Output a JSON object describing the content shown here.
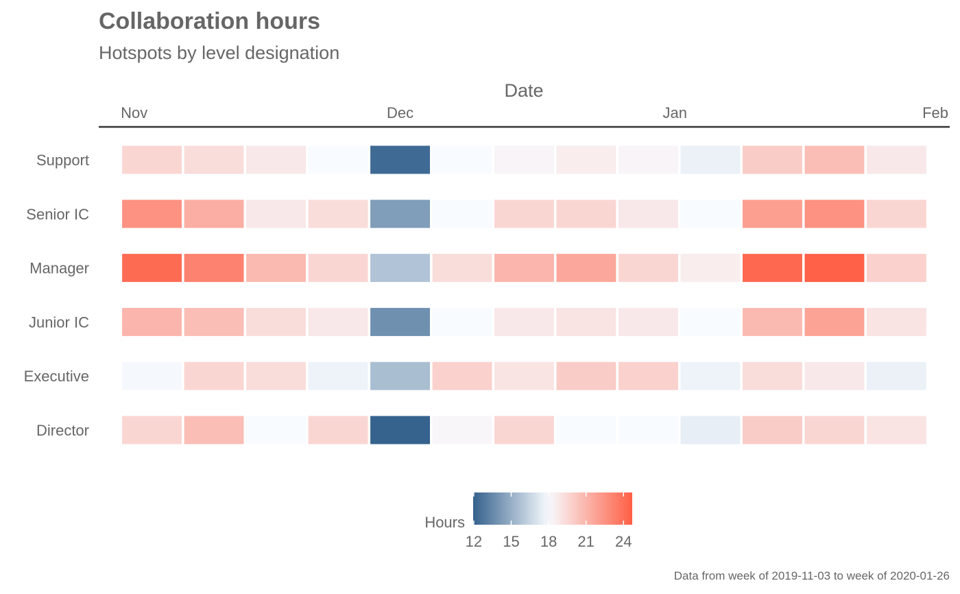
{
  "chart_data": {
    "type": "heatmap",
    "title": "Collaboration hours",
    "subtitle": "Hotspots by level designation",
    "xlabel": "Date",
    "ylabel": "",
    "caption": "Data from week of 2019-11-03 to week of 2020-01-26",
    "x_ticks": [
      {
        "label": "Nov",
        "date": "2019-11-01"
      },
      {
        "label": "Dec",
        "date": "2019-12-01"
      },
      {
        "label": "Jan",
        "date": "2020-01-01"
      },
      {
        "label": "Feb",
        "date": "2020-02-01"
      }
    ],
    "xlim": [
      "2019-10-28",
      "2020-02-01"
    ],
    "weeks": [
      "2019-11-03",
      "2019-11-10",
      "2019-11-17",
      "2019-11-24",
      "2019-12-01",
      "2019-12-08",
      "2019-12-15",
      "2019-12-22",
      "2019-12-29",
      "2020-01-05",
      "2020-01-12",
      "2020-01-19",
      "2020-01-26"
    ],
    "rows": [
      "Support",
      "Senior IC",
      "Manager",
      "Junior IC",
      "Executive",
      "Director"
    ],
    "values": [
      [
        19.6,
        19.3,
        18.8,
        18.0,
        12.3,
        18.0,
        18.3,
        18.6,
        18.3,
        17.6,
        20.0,
        20.6,
        18.8
      ],
      [
        22.5,
        21.3,
        18.8,
        19.3,
        14.3,
        18.0,
        19.6,
        19.6,
        18.8,
        18.0,
        22.0,
        22.5,
        19.6
      ],
      [
        24.2,
        23.2,
        20.8,
        19.6,
        15.8,
        19.3,
        21.0,
        21.6,
        19.6,
        18.6,
        24.3,
        24.6,
        19.8
      ],
      [
        21.0,
        20.6,
        19.3,
        18.8,
        13.8,
        18.0,
        18.8,
        19.0,
        18.8,
        18.0,
        20.8,
        21.8,
        19.0
      ],
      [
        17.9,
        19.6,
        19.3,
        17.7,
        15.6,
        19.8,
        19.0,
        20.0,
        19.8,
        17.7,
        19.3,
        18.8,
        17.6
      ],
      [
        19.6,
        20.6,
        18.0,
        19.6,
        12.0,
        18.2,
        19.6,
        18.0,
        18.0,
        17.5,
        20.0,
        19.6,
        19.0
      ]
    ],
    "color_scale": {
      "title": "Hours",
      "low": "#34618D",
      "mid": "#F8FBFF",
      "high": "#FF5F45",
      "domain": [
        11.95,
        24.7
      ],
      "breaks": [
        12,
        15,
        18,
        21,
        24
      ]
    },
    "grid": false,
    "legend_position": "bottom"
  }
}
